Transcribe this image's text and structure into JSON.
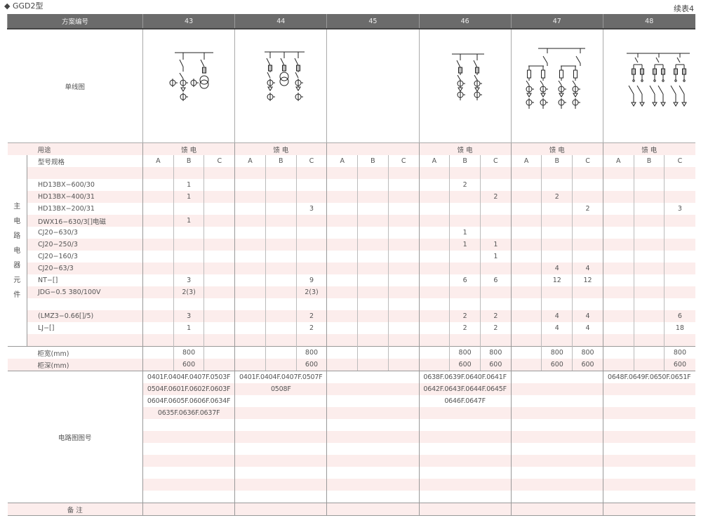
{
  "title": "◆ GGD2型",
  "continued": "续表4",
  "header": {
    "label": "方案编号",
    "schemes": [
      "43",
      "44",
      "45",
      "46",
      "47",
      "48"
    ]
  },
  "diagram_label": "单线图",
  "usage": {
    "label": "用途",
    "values": [
      "馈 电",
      "馈 电",
      "",
      "馈 电",
      "馈 电",
      "馈 电"
    ]
  },
  "side_label": [
    "主",
    "电",
    "路",
    "电",
    "器",
    "元",
    "件"
  ],
  "components": [
    {
      "label": "型号规格",
      "values": [
        "A",
        "B",
        "C",
        "A",
        "B",
        "C",
        "A",
        "B",
        "C",
        "A",
        "B",
        "C",
        "A",
        "B",
        "C",
        "A",
        "B",
        "C"
      ]
    },
    {
      "label": "",
      "values": [
        "",
        "",
        "",
        "",
        "",
        "",
        "",
        "",
        "",
        "",
        "",
        "",
        "",
        "",
        "",
        "",
        "",
        ""
      ]
    },
    {
      "label": "HD13BX−600/30",
      "values": [
        "",
        "1",
        "",
        "",
        "",
        "",
        "",
        "",
        "",
        "",
        "2",
        "",
        "",
        "",
        "",
        "",
        "",
        ""
      ]
    },
    {
      "label": "HD13BX−400/31",
      "values": [
        "",
        "1",
        "",
        "",
        "",
        "",
        "",
        "",
        "",
        "",
        "",
        "2",
        "",
        "2",
        "",
        "",
        "",
        ""
      ]
    },
    {
      "label": "HD13BX−200/31",
      "values": [
        "",
        "",
        "",
        "",
        "",
        "3",
        "",
        "",
        "",
        "",
        "",
        "",
        "",
        "",
        "2",
        "",
        "",
        "3"
      ]
    },
    {
      "label": "DWX16−630/3[]电磁",
      "values": [
        "",
        "1",
        "",
        "",
        "",
        "",
        "",
        "",
        "",
        "",
        "",
        "",
        "",
        "",
        "",
        "",
        "",
        ""
      ]
    },
    {
      "label": "CJ20−630/3",
      "values": [
        "",
        "",
        "",
        "",
        "",
        "",
        "",
        "",
        "",
        "",
        "1",
        "",
        "",
        "",
        "",
        "",
        "",
        ""
      ]
    },
    {
      "label": "CJ20−250/3",
      "values": [
        "",
        "",
        "",
        "",
        "",
        "",
        "",
        "",
        "",
        "",
        "1",
        "1",
        "",
        "",
        "",
        "",
        "",
        ""
      ]
    },
    {
      "label": "CJ20−160/3",
      "values": [
        "",
        "",
        "",
        "",
        "",
        "",
        "",
        "",
        "",
        "",
        "",
        "1",
        "",
        "",
        "",
        "",
        "",
        ""
      ]
    },
    {
      "label": "CJ20−63/3",
      "values": [
        "",
        "",
        "",
        "",
        "",
        "",
        "",
        "",
        "",
        "",
        "",
        "",
        "",
        "4",
        "4",
        "",
        "",
        ""
      ]
    },
    {
      "label": "NT−[]",
      "values": [
        "",
        "3",
        "",
        "",
        "",
        "9",
        "",
        "",
        "",
        "",
        "6",
        "6",
        "",
        "12",
        "12",
        "",
        "",
        ""
      ]
    },
    {
      "label": "JDG−0.5  380/100V",
      "values": [
        "",
        "2(3)",
        "",
        "",
        "",
        "2(3)",
        "",
        "",
        "",
        "",
        "",
        "",
        "",
        "",
        "",
        "",
        "",
        ""
      ]
    },
    {
      "label": "",
      "values": [
        "",
        "",
        "",
        "",
        "",
        "",
        "",
        "",
        "",
        "",
        "",
        "",
        "",
        "",
        "",
        "",
        "",
        ""
      ]
    },
    {
      "label": "(LMZ3−0.66[]/5)",
      "values": [
        "",
        "3",
        "",
        "",
        "",
        "2",
        "",
        "",
        "",
        "",
        "2",
        "2",
        "",
        "4",
        "4",
        "",
        "",
        "6"
      ]
    },
    {
      "label": "LJ−[]",
      "values": [
        "",
        "1",
        "",
        "",
        "",
        "2",
        "",
        "",
        "",
        "",
        "2",
        "2",
        "",
        "4",
        "4",
        "",
        "",
        "18"
      ]
    },
    {
      "label": "",
      "values": [
        "",
        "",
        "",
        "",
        "",
        "",
        "",
        "",
        "",
        "",
        "",
        "",
        "",
        "",
        "",
        "",
        "",
        ""
      ]
    }
  ],
  "dimensions": [
    {
      "label": "柜宽(mm)",
      "values": [
        "",
        "800",
        "",
        "",
        "",
        "800",
        "",
        "",
        "",
        "",
        "800",
        "800",
        "",
        "800",
        "800",
        "",
        "",
        "800"
      ]
    },
    {
      "label": "柜深(mm)",
      "values": [
        "",
        "600",
        "",
        "",
        "",
        "600",
        "",
        "",
        "",
        "",
        "600",
        "600",
        "",
        "600",
        "600",
        "",
        "",
        "600"
      ]
    }
  ],
  "circuit": {
    "label": "电路图图号",
    "codes": [
      [
        "0401F.0404F.0407F.0503F",
        "0504F.0601F.0602F.0603F",
        "0604F.0605F.0606F.0634F",
        "0635F.0636F.0637F"
      ],
      [
        "0401F.0404F.0407F.0507F",
        "0508F"
      ],
      [],
      [
        "0638F.0639F.0640F.0641F",
        "0642F.0643F.0644F.0645F",
        "0646F.0647F"
      ],
      [],
      [
        "0648F.0649F.0650F.0651F"
      ]
    ]
  },
  "remarks": {
    "label": "备 注"
  },
  "colors": {
    "header_bg": "#6b6b6b",
    "stripe": "#fcedec",
    "text": "#555555"
  }
}
